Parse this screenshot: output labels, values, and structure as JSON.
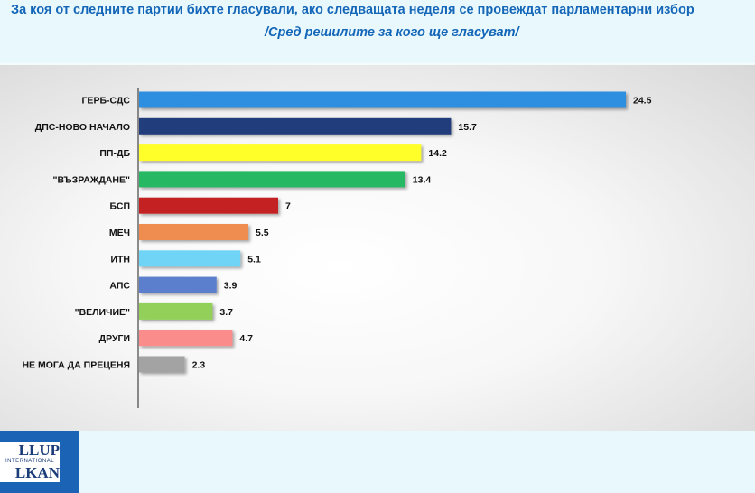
{
  "header": {
    "title": "За коя от следните партии бихте  гласували,  ако следващата неделя се провеждат парламентарни избор",
    "subtitle": "/Сред решилите за кого ще гласуват/"
  },
  "logo": {
    "line1": "LLUP",
    "line2": "INTERNATIONAL",
    "line3": "LKAN"
  },
  "chart_data": {
    "type": "bar",
    "orientation": "horizontal",
    "title": "За коя от следните партии бихте  гласували,  ако следващата неделя се провеждат парламентарни избор",
    "subtitle": "/Сред решилите за кого ще гласуват/",
    "categories": [
      "ГЕРБ-СДС",
      "ДПС-НОВО НАЧАЛО",
      "ПП-ДБ",
      "\"ВЪЗРАЖДАНЕ\"",
      "БСП",
      "МЕЧ",
      "ИТН",
      "АПС",
      "\"ВЕЛИЧИЕ\"",
      "ДРУГИ",
      "НЕ МОГА ДА ПРЕЦЕНЯ"
    ],
    "values": [
      24.5,
      15.7,
      14.2,
      13.4,
      7,
      5.5,
      5.1,
      3.9,
      3.7,
      4.7,
      2.3
    ],
    "value_labels": [
      "24.5",
      "15.7",
      "14.2",
      "13.4",
      "7",
      "5.5",
      "5.1",
      "3.9",
      "3.7",
      "4.7",
      "2.3"
    ],
    "colors": [
      "#2e8fe0",
      "#243d7c",
      "#ffff2b",
      "#28b863",
      "#c42323",
      "#ef8c4f",
      "#6fd4f7",
      "#5b7fcd",
      "#92d05a",
      "#fb8c8c",
      "#a3a3a3"
    ],
    "xlim": [
      0,
      26
    ],
    "grid": false,
    "legend": "none"
  }
}
